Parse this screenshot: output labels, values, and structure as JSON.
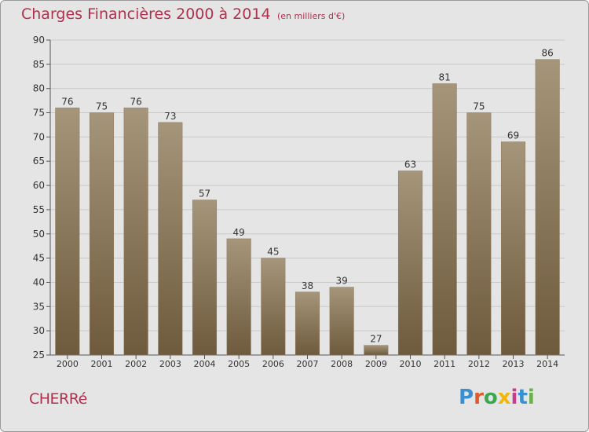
{
  "header": {
    "title": "Charges Financières 2000 à 2014",
    "subtitle": "(en milliers d'€)"
  },
  "footer": {
    "commune": "CHERRé",
    "logo_letters": [
      "P",
      "r",
      "o",
      "x",
      "i",
      "t",
      "i"
    ],
    "logo_colors": [
      "#3a8fd1",
      "#e05a2a",
      "#3aa84f",
      "#f2b705",
      "#c93b8f",
      "#3a8fd1",
      "#6ab04c"
    ]
  },
  "colors": {
    "title": "#b0314d",
    "bar_top": "#a5957a",
    "bar_bottom": "#6e5a3c",
    "background": "#e5e5e5",
    "grid": "#c9c9c9"
  },
  "chart_data": {
    "type": "bar",
    "categories": [
      "2000",
      "2001",
      "2002",
      "2003",
      "2004",
      "2005",
      "2006",
      "2007",
      "2008",
      "2009",
      "2010",
      "2011",
      "2012",
      "2013",
      "2014"
    ],
    "values": [
      76,
      75,
      76,
      73,
      57,
      49,
      45,
      38,
      39,
      27,
      63,
      81,
      75,
      69,
      86
    ],
    "ylim": [
      25,
      90
    ],
    "yticks": [
      25,
      30,
      35,
      40,
      45,
      50,
      55,
      60,
      65,
      70,
      75,
      80,
      85,
      90
    ],
    "grid": true
  }
}
